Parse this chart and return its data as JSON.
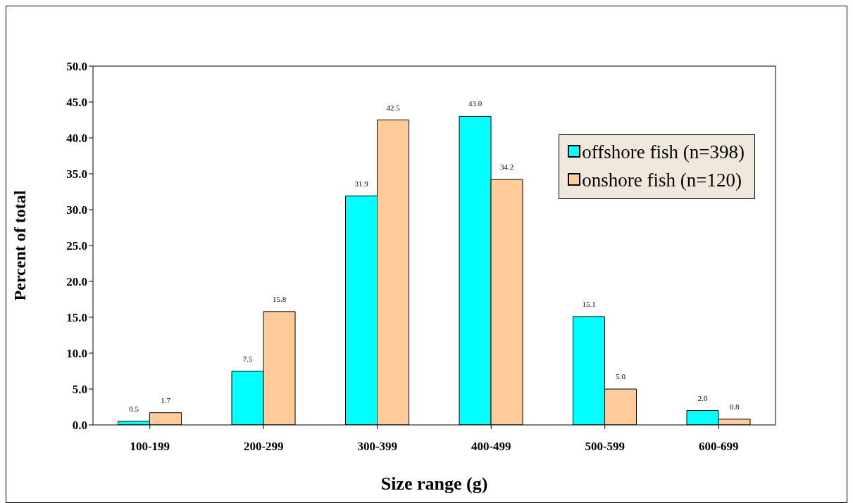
{
  "chart_data": {
    "type": "bar",
    "xlabel": "Size range (g)",
    "ylabel": "Percent of total",
    "categories": [
      "100-199",
      "200-299",
      "300-399",
      "400-499",
      "500-599",
      "600-699"
    ],
    "series": [
      {
        "name": "offshore fish (n=398)",
        "color": "#00ffff",
        "values": [
          0.5,
          7.5,
          31.9,
          43.0,
          15.1,
          2.0
        ],
        "value_labels": [
          "0.5",
          "7.5",
          "31.9",
          "43.0",
          "15.1",
          "2.0"
        ]
      },
      {
        "name": "onshore fish (n=120)",
        "color": "#ffcc99",
        "values": [
          1.7,
          15.8,
          42.5,
          34.2,
          5.0,
          0.8
        ],
        "value_labels": [
          "1.7",
          "15.8",
          "42.5",
          "34.2",
          "5.0",
          "0.8"
        ]
      }
    ],
    "ylim": [
      0,
      50
    ],
    "yticks": [
      {
        "value": 0,
        "label": "0.0"
      },
      {
        "value": 5,
        "label": "5.0"
      },
      {
        "value": 10,
        "label": "10.0"
      },
      {
        "value": 15,
        "label": "15.0"
      },
      {
        "value": 20,
        "label": "20.0"
      },
      {
        "value": 25,
        "label": "25.0"
      },
      {
        "value": 30,
        "label": "30.0"
      },
      {
        "value": 35,
        "label": "35.0"
      },
      {
        "value": 40,
        "label": "40.0"
      },
      {
        "value": 45,
        "label": "45.0"
      },
      {
        "value": 50,
        "label": "50.0"
      }
    ],
    "grid": false,
    "legend": "top right"
  }
}
